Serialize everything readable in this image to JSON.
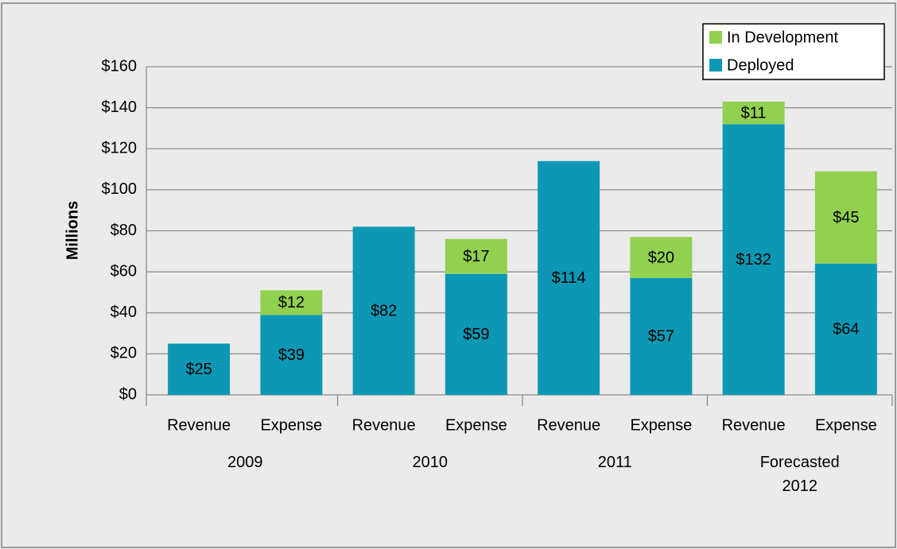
{
  "chart_data": {
    "type": "stacked_bar",
    "y_label": "Millions",
    "categories": [
      "Revenue",
      "Expense",
      "Revenue",
      "Expense",
      "Revenue",
      "Expense",
      "Revenue",
      "Expense"
    ],
    "groups": [
      "2009",
      "2010",
      "2011",
      "Forecasted 2012"
    ],
    "series": [
      {
        "name": "Deployed",
        "color": "#0c98b4",
        "values": [
          25,
          39,
          82,
          59,
          114,
          57,
          132,
          64
        ],
        "value_labels": [
          "$25",
          "$39",
          "$82",
          "$59",
          "$114",
          "$57",
          "$132",
          "$64"
        ]
      },
      {
        "name": "In Development",
        "color": "#92d050",
        "values": [
          null,
          12,
          null,
          17,
          null,
          20,
          11,
          45
        ],
        "value_labels": [
          null,
          "$12",
          null,
          "$17",
          null,
          "$20",
          "$11",
          "$45"
        ]
      }
    ],
    "ylim": [
      0,
      160
    ],
    "yticks": [
      {
        "value": 0,
        "label": "$0"
      },
      {
        "value": 20,
        "label": "$20"
      },
      {
        "value": 40,
        "label": "$40"
      },
      {
        "value": 60,
        "label": "$60"
      },
      {
        "value": 80,
        "label": "$80"
      },
      {
        "value": 100,
        "label": "$100"
      },
      {
        "value": 120,
        "label": "$120"
      },
      {
        "value": 140,
        "label": "$140"
      },
      {
        "value": 160,
        "label": "$160"
      }
    ],
    "grid": true,
    "legend": "top-right"
  }
}
